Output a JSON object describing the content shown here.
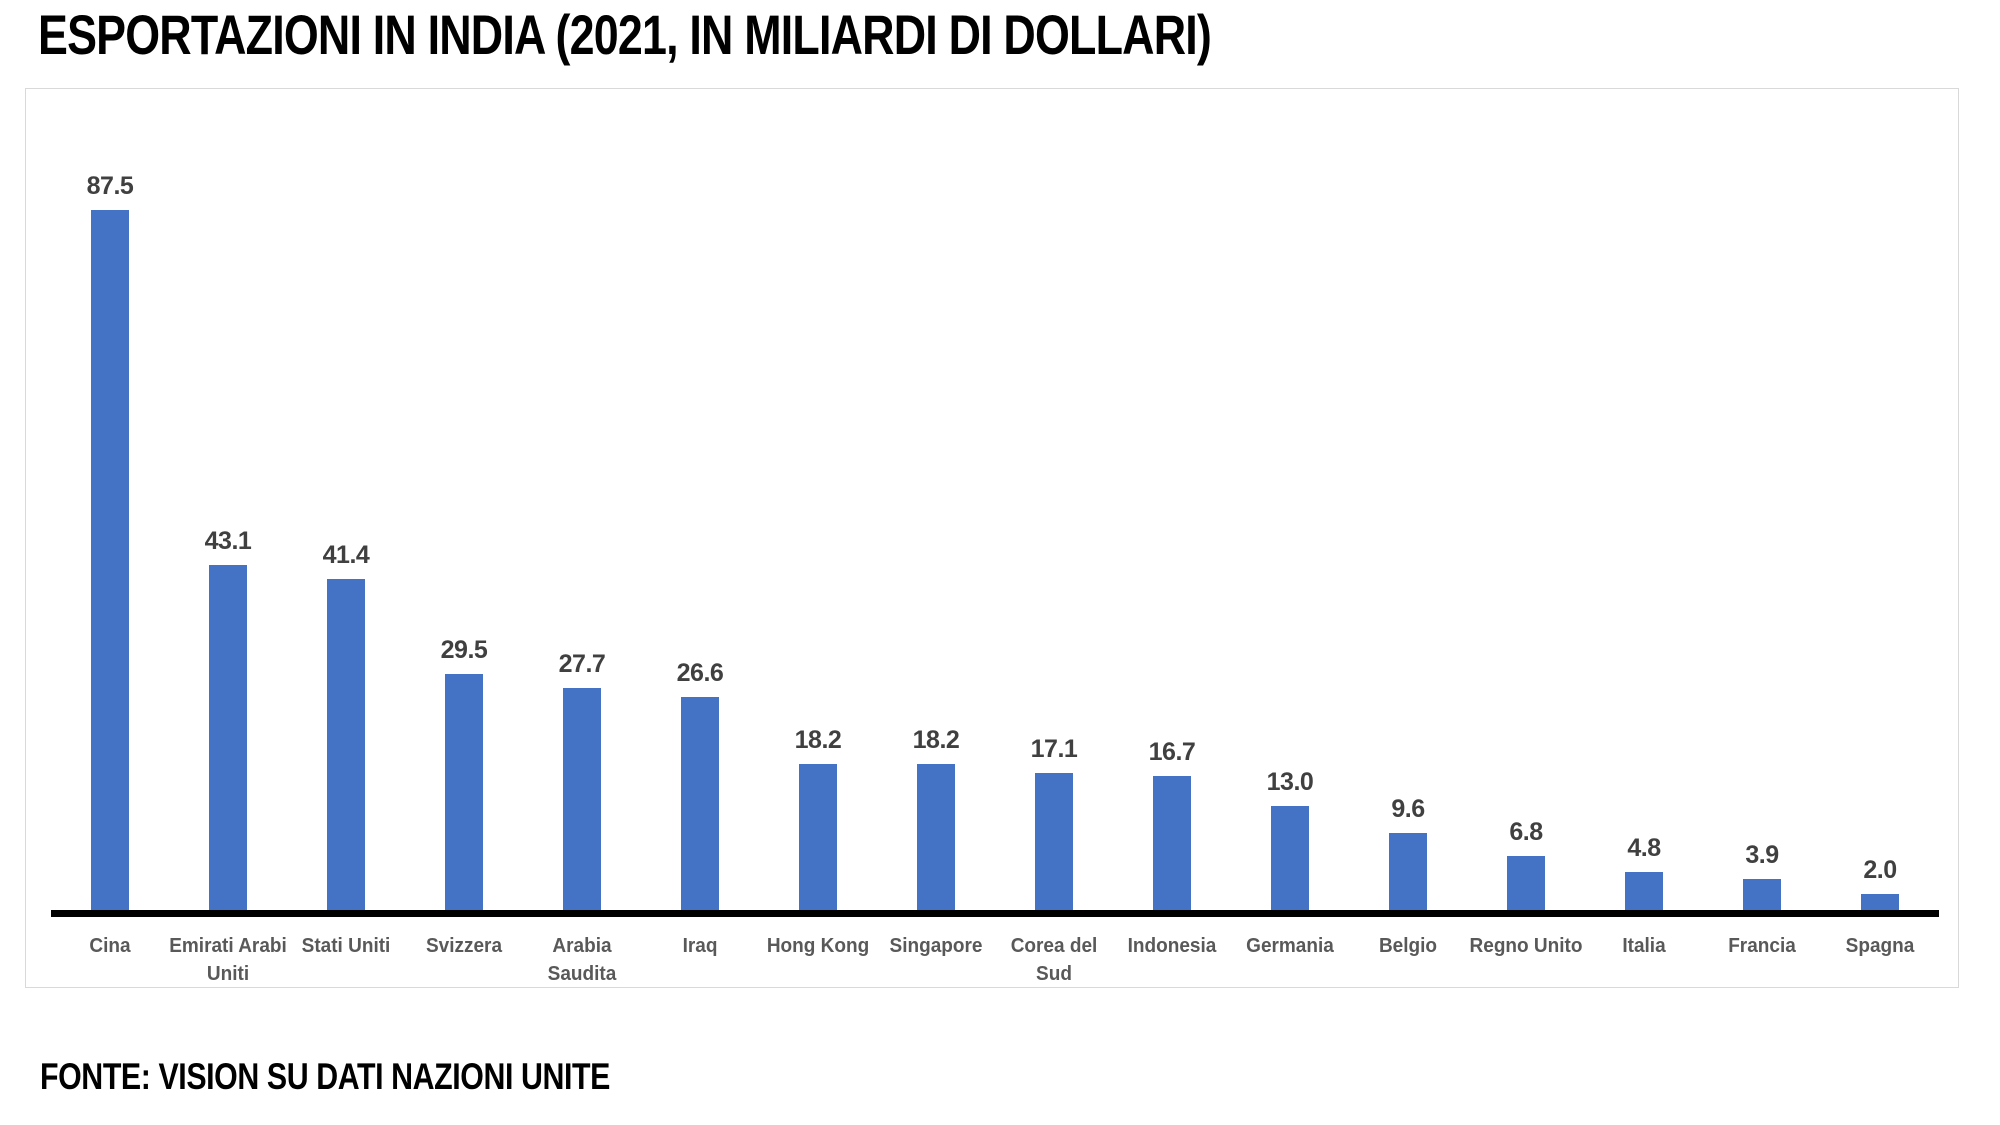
{
  "header": {
    "title": "ESPORTAZIONI IN INDIA (2021, IN MILIARDI DI DOLLARI)"
  },
  "footer": {
    "source": "FONTE: VISION SU DATI NAZIONI UNITE"
  },
  "chart_data": {
    "type": "bar",
    "title": "ESPORTAZIONI IN INDIA (2021, IN MILIARDI DI DOLLARI)",
    "source_note": "FONTE: VISION SU DATI NAZIONI UNITE",
    "categories": [
      "Cina",
      "Emirati Arabi\nUniti",
      "Stati Uniti",
      "Svizzera",
      "Arabia\nSaudita",
      "Iraq",
      "Hong Kong",
      "Singapore",
      "Corea del\nSud",
      "Indonesia",
      "Germania",
      "Belgio",
      "Regno Unito",
      "Italia",
      "Francia",
      "Spagna"
    ],
    "values": [
      87.5,
      43.1,
      41.4,
      29.5,
      27.7,
      26.6,
      18.2,
      18.2,
      17.1,
      16.7,
      13.0,
      9.6,
      6.8,
      4.8,
      3.9,
      2.0
    ],
    "value_labels": [
      "87.5",
      "43.1",
      "41.4",
      "29.5",
      "27.7",
      "26.6",
      "18.2",
      "18.2",
      "17.1",
      "16.7",
      "13.0",
      "9.6",
      "6.8",
      "4.8",
      "3.9",
      "2.0"
    ],
    "xlabel": "",
    "ylabel": "",
    "ylim": [
      0,
      100
    ],
    "grid": false,
    "legend": false,
    "data_labels": true,
    "bar_color": "#4472C4",
    "value_label_color": "#404040",
    "category_label_color": "#595959",
    "axis_color": "#000000",
    "frame_border_color": "#d9d9d9"
  }
}
